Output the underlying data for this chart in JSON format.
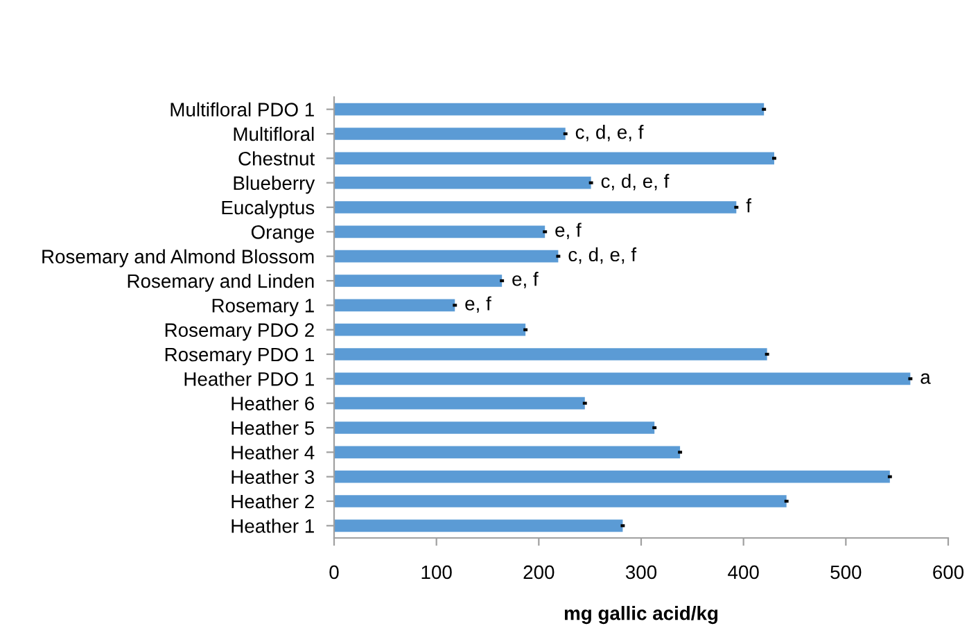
{
  "chart_data": {
    "type": "bar",
    "orientation": "horizontal",
    "xlabel": "mg gallic acid/kg",
    "categories": [
      "Multifloral PDO 1",
      "Multifloral",
      "Chestnut",
      "Blueberry",
      "Eucalyptus",
      "Orange",
      "Rosemary and Almond Blossom",
      "Rosemary and Linden",
      "Rosemary 1",
      "Rosemary PDO 2",
      "Rosemary PDO 1",
      "Heather PDO 1",
      "Heather 6",
      "Heather 5",
      "Heather 4",
      "Heather 3",
      "Heather 2",
      "Heather 1"
    ],
    "values": [
      420,
      226,
      430,
      251,
      393,
      206,
      219,
      164,
      118,
      187,
      423,
      563,
      245,
      313,
      338,
      543,
      442,
      282
    ],
    "errors": [
      2,
      2,
      2,
      2,
      2,
      2,
      2,
      2,
      2,
      2,
      2,
      2,
      2,
      2,
      2,
      2,
      2,
      2
    ],
    "color": "#5b9bd5",
    "xlim": [
      0,
      600
    ],
    "xticks": [
      0,
      100,
      200,
      300,
      400,
      500,
      600
    ],
    "grid": false,
    "legend": false,
    "annotations": [
      {
        "text": "c, d, e, f",
        "x": 226,
        "y": "Multifloral"
      },
      {
        "text": "c, d, e, f",
        "x": 251,
        "y": "Blueberry"
      },
      {
        "text": "f",
        "x": 393,
        "y": "Eucalyptus"
      },
      {
        "text": "e, f",
        "x": 206,
        "y": "Orange"
      },
      {
        "text": "c, d, e, f",
        "x": 219,
        "y": "Rosemary and Almond Blossom"
      },
      {
        "text": "e, f",
        "x": 164,
        "y": "Rosemary and Linden"
      },
      {
        "text": "e, f",
        "x": 118,
        "y": "Rosemary 1"
      },
      {
        "text": "a",
        "x": 563,
        "y": "Heather PDO 1"
      }
    ]
  }
}
